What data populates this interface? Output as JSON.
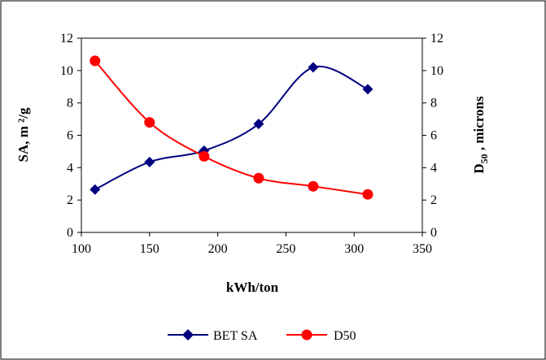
{
  "chart_data": {
    "type": "line",
    "xlabel": "kWh/ton",
    "ylabel": "SA, m ²/g",
    "y2label": "D",
    "y2label_sub": "50",
    "y2label_rest": " , microns",
    "xlim": [
      100,
      350
    ],
    "xticks": [
      100,
      150,
      200,
      250,
      300,
      350
    ],
    "ylim": [
      0,
      12
    ],
    "yticks": [
      0,
      2,
      4,
      6,
      8,
      10,
      12
    ],
    "y2lim": [
      0,
      12
    ],
    "y2ticks": [
      0,
      2,
      4,
      6,
      8,
      10,
      12
    ],
    "grid": false,
    "smooth": true,
    "legend_position": "bottom",
    "series": [
      {
        "name": "BET SA",
        "axis": "left",
        "color": "#000080",
        "marker": "diamond",
        "x": [
          110,
          150,
          190,
          230,
          270,
          310
        ],
        "values": [
          2.65,
          4.35,
          5.05,
          6.7,
          10.2,
          8.85
        ]
      },
      {
        "name": "D50",
        "axis": "right",
        "color": "#ff0000",
        "marker": "circle",
        "x": [
          110,
          150,
          190,
          230,
          270,
          310
        ],
        "values": [
          10.6,
          6.8,
          4.7,
          3.35,
          2.85,
          2.35
        ]
      }
    ]
  }
}
